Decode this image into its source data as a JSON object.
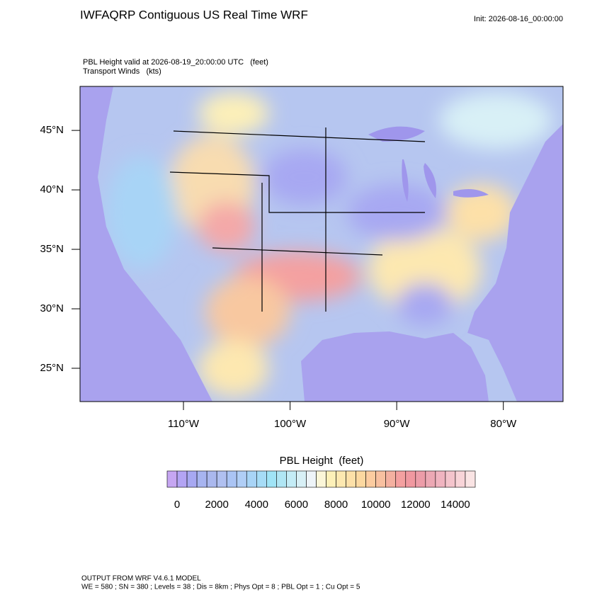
{
  "header": {
    "title": "IWFAQRP Contiguous US Real Time WRF",
    "init": "Init: 2026-08-16_00:00:00"
  },
  "plot": {
    "subtitle_lines": [
      "PBL Height valid at 2026-08-19_20:00:00 UTC   (feet)",
      "Transport Winds   (kts)"
    ],
    "lat_range": [
      22.2,
      48.7
    ],
    "lon_range": [
      -119.7,
      -74.4
    ],
    "lat_ticks": [
      {
        "value": 45,
        "label": "45°N"
      },
      {
        "value": 40,
        "label": "40°N"
      },
      {
        "value": 35,
        "label": "35°N"
      },
      {
        "value": 30,
        "label": "30°N"
      },
      {
        "value": 25,
        "label": "25°N"
      }
    ],
    "lon_ticks": [
      {
        "value": -110,
        "label": "110°W"
      },
      {
        "value": -100,
        "label": "100°W"
      },
      {
        "value": -90,
        "label": "90°W"
      },
      {
        "value": -80,
        "label": "80°W"
      }
    ]
  },
  "colorbar": {
    "title": "PBL Height  (feet)",
    "range": [
      -500,
      15000
    ],
    "colors": [
      "#c6a6f2",
      "#b3a4f4",
      "#a7a8f2",
      "#a7b4f0",
      "#aab8ee",
      "#b0c0f0",
      "#aac4f4",
      "#b0cef6",
      "#a8d4f6",
      "#a6dcf6",
      "#a0e4f6",
      "#b0e6f4",
      "#c4ecf6",
      "#d8f0f6",
      "#eef4f8",
      "#fbf6d8",
      "#fdf0b8",
      "#fde8b0",
      "#fde0a8",
      "#fcd8a0",
      "#fccca0",
      "#f8c0a0",
      "#f4b0a0",
      "#f4a0a0",
      "#f098a0",
      "#ec9ca8",
      "#eca8b4",
      "#f0b4c0",
      "#f4c4cc",
      "#f8d4d8",
      "#fae4e4"
    ],
    "ticks": [
      0,
      2000,
      4000,
      6000,
      8000,
      10000,
      12000,
      14000
    ]
  },
  "footer": {
    "lines": [
      "OUTPUT FROM WRF V4.6.1 MODEL",
      "WE = 580 ; SN = 380 ; Levels = 38 ; Dis = 8km ; Phys Opt = 8 ; PBL Opt = 1 ; Cu Opt = 5"
    ]
  }
}
